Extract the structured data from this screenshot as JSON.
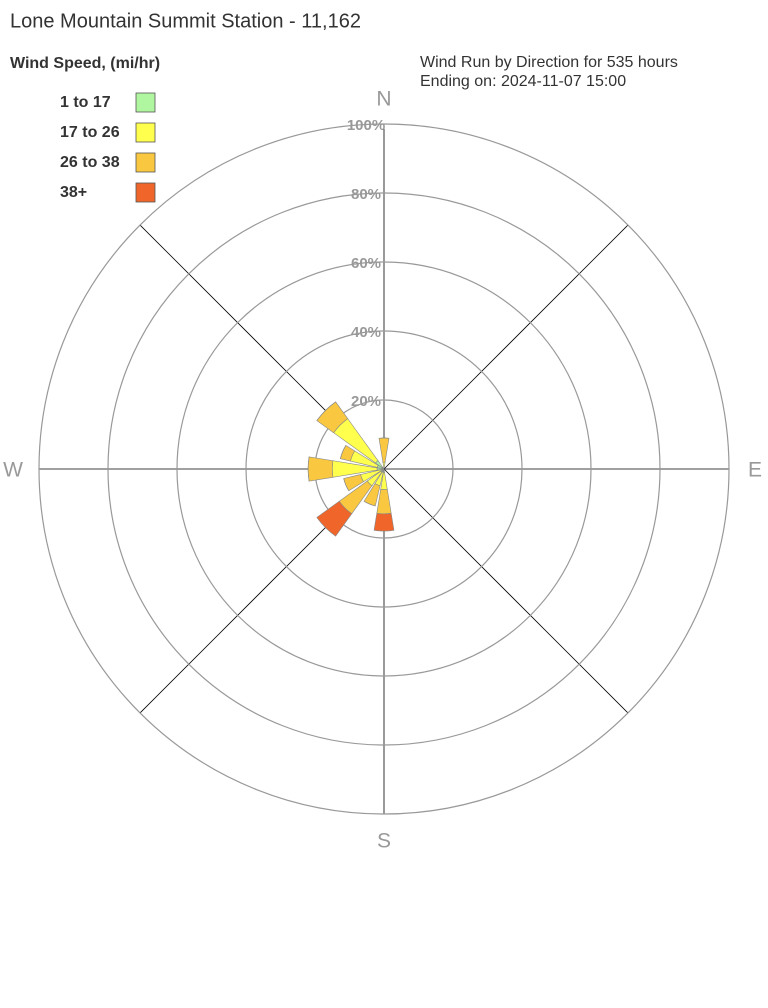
{
  "chart_data": {
    "type": "windrose",
    "title": "Lone Mountain Summit Station - 11,162",
    "subtitle": [
      "Wind Run by Direction for 535 hours",
      "Ending on: 2024-11-07 15:00"
    ],
    "legend_title": "Wind Speed, (mi/hr)",
    "categories": [
      "N",
      null,
      null,
      null,
      "E",
      null,
      null,
      null,
      "S",
      null,
      null,
      null,
      "W",
      null,
      null,
      null
    ],
    "series": [
      {
        "name": "1 to 17",
        "color": "#b0f5a0",
        "values": [
          0,
          0,
          0,
          0,
          0,
          0,
          0,
          0,
          1,
          1,
          1,
          1,
          2,
          2,
          3,
          0
        ]
      },
      {
        "name": "17 to 26",
        "color": "#ffff4d",
        "values": [
          2,
          0,
          0,
          0,
          0,
          0,
          0,
          0,
          5,
          4,
          5,
          6,
          13,
          8,
          15,
          0
        ]
      },
      {
        "name": "26 to 38",
        "color": "#f9c840",
        "values": [
          7,
          0,
          0,
          0,
          0,
          0,
          0,
          0,
          7,
          6,
          10,
          5,
          7,
          3,
          6,
          0
        ]
      },
      {
        "name": "38+",
        "color": "#f0662a",
        "values": [
          0,
          0,
          0,
          0,
          0,
          0,
          0,
          0,
          5,
          0,
          8,
          0,
          0,
          0,
          0,
          0
        ]
      }
    ],
    "ylim": [
      0,
      100
    ],
    "yticks": [
      {
        "value": 20,
        "label": "20%"
      },
      {
        "value": 40,
        "label": "40%"
      },
      {
        "value": 60,
        "label": "60%"
      },
      {
        "value": 80,
        "label": "80%"
      },
      {
        "value": 100,
        "label": "100%"
      }
    ]
  }
}
